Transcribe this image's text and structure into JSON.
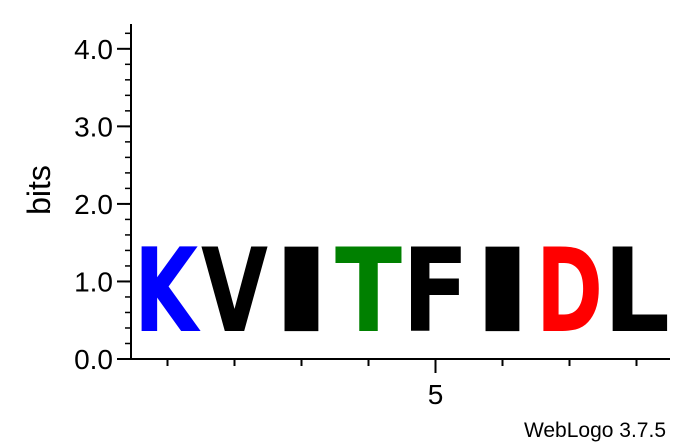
{
  "chart_data": {
    "type": "sequence-logo",
    "title": "",
    "ylabel": "bits",
    "xlabel": "",
    "ylim": [
      0,
      4.32
    ],
    "y_ticks": [
      {
        "value": 0.0,
        "label": "0.0"
      },
      {
        "value": 1.0,
        "label": "1.0"
      },
      {
        "value": 2.0,
        "label": "2.0"
      },
      {
        "value": 3.0,
        "label": "3.0"
      },
      {
        "value": 4.0,
        "label": "4.0"
      }
    ],
    "y_minor_step": 0.2,
    "x_tick_labels": [
      {
        "position": 5,
        "label": "5"
      }
    ],
    "positions": [
      {
        "position": 1,
        "letter": "K",
        "bits": 1.75,
        "color": "#0000FF"
      },
      {
        "position": 2,
        "letter": "V",
        "bits": 1.75,
        "color": "#000000"
      },
      {
        "position": 3,
        "letter": "I",
        "bits": 1.75,
        "color": "#000000"
      },
      {
        "position": 4,
        "letter": "T",
        "bits": 1.75,
        "color": "#008000"
      },
      {
        "position": 5,
        "letter": "F",
        "bits": 1.75,
        "color": "#000000"
      },
      {
        "position": 6,
        "letter": "I",
        "bits": 1.75,
        "color": "#000000"
      },
      {
        "position": 7,
        "letter": "D",
        "bits": 1.75,
        "color": "#FF0000"
      },
      {
        "position": 8,
        "letter": "L",
        "bits": 1.75,
        "color": "#000000"
      }
    ]
  },
  "footer": {
    "text": "WebLogo 3.7.5"
  }
}
